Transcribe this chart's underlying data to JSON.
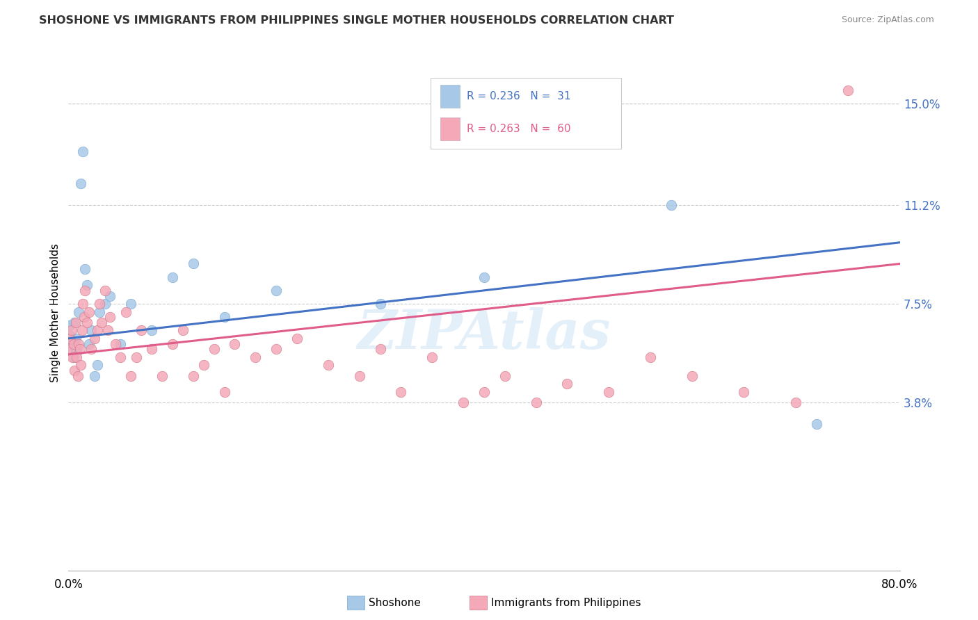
{
  "title": "SHOSHONE VS IMMIGRANTS FROM PHILIPPINES SINGLE MOTHER HOUSEHOLDS CORRELATION CHART",
  "source": "Source: ZipAtlas.com",
  "ylabel": "Single Mother Households",
  "yticks": [
    0.0,
    0.038,
    0.075,
    0.112,
    0.15
  ],
  "ytick_labels": [
    "",
    "3.8%",
    "7.5%",
    "11.2%",
    "15.0%"
  ],
  "xlim": [
    0.0,
    0.8
  ],
  "ylim": [
    -0.025,
    0.168
  ],
  "watermark": "ZIPAtlas",
  "color_shoshone": "#a8c8e8",
  "color_philippines": "#f4a8b8",
  "line_color_shoshone": "#4472c4",
  "line_color_philippines": "#e05c8a",
  "shoshone_x": [
    0.001,
    0.002,
    0.003,
    0.004,
    0.005,
    0.006,
    0.007,
    0.008,
    0.01,
    0.012,
    0.014,
    0.016,
    0.018,
    0.02,
    0.022,
    0.025,
    0.028,
    0.03,
    0.035,
    0.04,
    0.05,
    0.06,
    0.08,
    0.1,
    0.12,
    0.15,
    0.2,
    0.3,
    0.4,
    0.58,
    0.72
  ],
  "shoshone_y": [
    0.067,
    0.063,
    0.058,
    0.06,
    0.055,
    0.068,
    0.062,
    0.058,
    0.072,
    0.12,
    0.132,
    0.088,
    0.082,
    0.06,
    0.065,
    0.048,
    0.052,
    0.072,
    0.075,
    0.078,
    0.06,
    0.075,
    0.065,
    0.085,
    0.09,
    0.07,
    0.08,
    0.075,
    0.085,
    0.112,
    0.03
  ],
  "philippines_x": [
    0.001,
    0.002,
    0.003,
    0.004,
    0.005,
    0.006,
    0.007,
    0.008,
    0.009,
    0.01,
    0.011,
    0.012,
    0.013,
    0.014,
    0.015,
    0.016,
    0.018,
    0.02,
    0.022,
    0.025,
    0.028,
    0.03,
    0.032,
    0.035,
    0.038,
    0.04,
    0.045,
    0.05,
    0.055,
    0.06,
    0.065,
    0.07,
    0.08,
    0.09,
    0.1,
    0.11,
    0.12,
    0.13,
    0.14,
    0.15,
    0.16,
    0.18,
    0.2,
    0.22,
    0.25,
    0.28,
    0.3,
    0.32,
    0.35,
    0.38,
    0.4,
    0.42,
    0.45,
    0.48,
    0.52,
    0.56,
    0.6,
    0.65,
    0.7,
    0.75
  ],
  "philippines_y": [
    0.062,
    0.058,
    0.065,
    0.055,
    0.06,
    0.05,
    0.068,
    0.055,
    0.048,
    0.06,
    0.058,
    0.052,
    0.065,
    0.075,
    0.07,
    0.08,
    0.068,
    0.072,
    0.058,
    0.062,
    0.065,
    0.075,
    0.068,
    0.08,
    0.065,
    0.07,
    0.06,
    0.055,
    0.072,
    0.048,
    0.055,
    0.065,
    0.058,
    0.048,
    0.06,
    0.065,
    0.048,
    0.052,
    0.058,
    0.042,
    0.06,
    0.055,
    0.058,
    0.062,
    0.052,
    0.048,
    0.058,
    0.042,
    0.055,
    0.038,
    0.042,
    0.048,
    0.038,
    0.045,
    0.042,
    0.055,
    0.048,
    0.042,
    0.038,
    0.155
  ],
  "trendline_shoshone_x0": 0.0,
  "trendline_shoshone_y0": 0.062,
  "trendline_shoshone_x1": 0.8,
  "trendline_shoshone_y1": 0.098,
  "trendline_phil_x0": 0.0,
  "trendline_phil_y0": 0.056,
  "trendline_phil_x1": 0.8,
  "trendline_phil_y1": 0.09
}
